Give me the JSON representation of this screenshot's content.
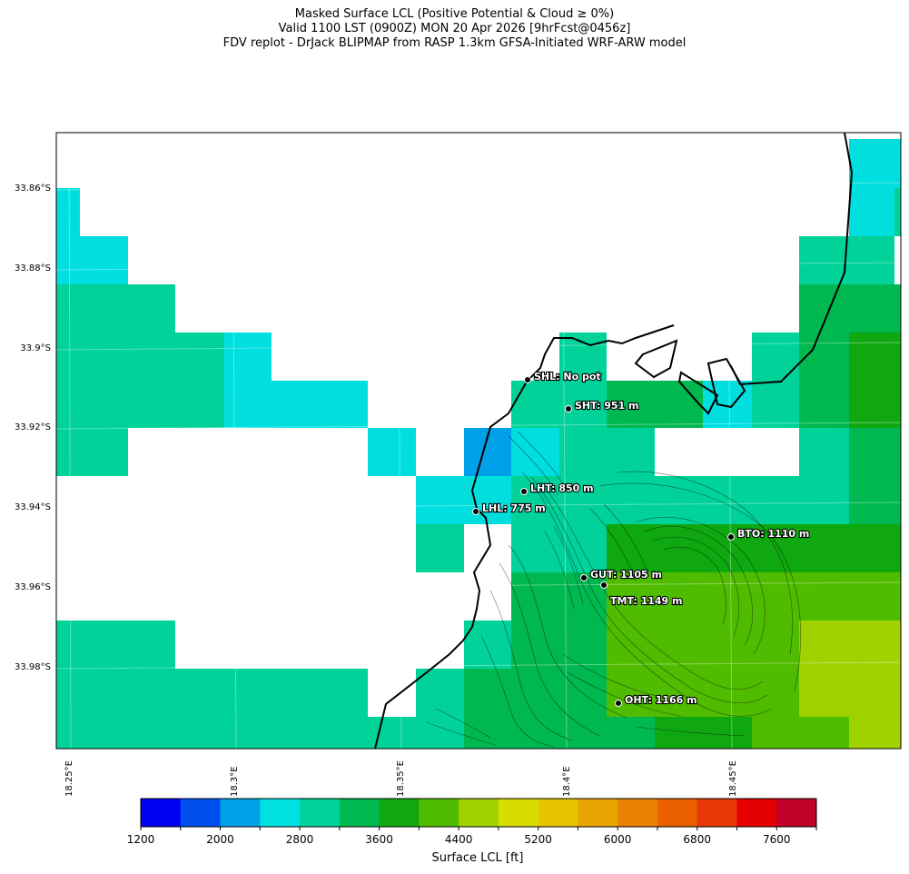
{
  "titles": {
    "line1": "Masked Surface LCL (Positive Potential & Cloud ≥ 0%)",
    "line2": "Valid 1100 LST (0900Z) MON 20 Apr 2026 [9hrFcst@0456z]",
    "line3": "FDV replot - DrJack BLIPMAP from RASP 1.3km GFSA-Initiated WRF-ARW model"
  },
  "axes": {
    "lat_labels": [
      "33.86°S",
      "33.88°S",
      "33.9°S",
      "33.92°S",
      "33.94°S",
      "33.96°S",
      "33.98°S"
    ],
    "lon_labels": [
      "18.25°E",
      "18.3°E",
      "18.35°E",
      "18.4°E",
      "18.45°E"
    ]
  },
  "stations": [
    {
      "code": "SHL",
      "label": "SHL: No pot"
    },
    {
      "code": "SHT",
      "label": "SHT: 951 m"
    },
    {
      "code": "LHT",
      "label": "LHT: 850 m"
    },
    {
      "code": "LHL",
      "label": "LHL: 775 m"
    },
    {
      "code": "BTO",
      "label": "BTO: 1110 m"
    },
    {
      "code": "GUT",
      "label": "GUT: 1105 m"
    },
    {
      "code": "TMT",
      "label": "TMT: 1149 m"
    },
    {
      "code": "OHT",
      "label": "OHT: 1166 m"
    }
  ],
  "colorbar": {
    "label": "Surface LCL [ft]",
    "tick_labels": [
      "1200",
      "2000",
      "2800",
      "3600",
      "4400",
      "5200",
      "6000",
      "6800",
      "7600"
    ],
    "colors": [
      "#0000f0",
      "#0050f0",
      "#00a0e8",
      "#00e0e0",
      "#00d29a",
      "#00b850",
      "#10a810",
      "#50bc00",
      "#a0d200",
      "#d8dc00",
      "#e6c400",
      "#e8a400",
      "#e88200",
      "#ea6000",
      "#e83808",
      "#e40000",
      "#c00028"
    ]
  },
  "grid_colors": {
    "cyan": "#00dede",
    "teal": "#00d29a",
    "green": "#00b850",
    "dgreen": "#10a810",
    "lgreen": "#50bc00",
    "yellowgreen": "#a0d200",
    "blue": "#00a0e8"
  }
}
